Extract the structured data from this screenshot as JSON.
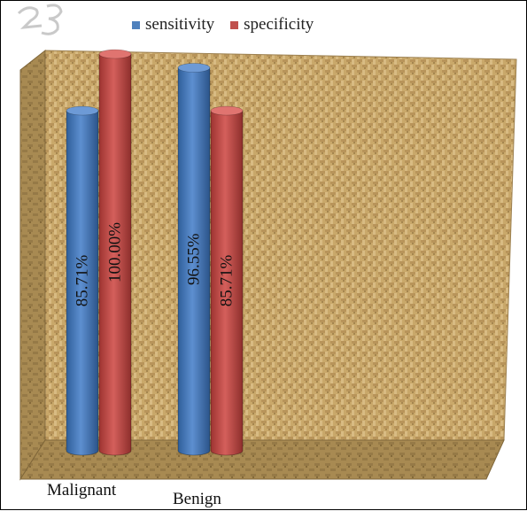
{
  "chart_data": {
    "type": "bar",
    "categories": [
      "Malignant",
      "Benign"
    ],
    "series": [
      {
        "name": "sensitivity",
        "values": [
          85.71,
          96.55
        ],
        "labels": [
          "85.71%",
          "96.55%"
        ],
        "color": "#4f81bd"
      },
      {
        "name": "specificity",
        "values": [
          100.0,
          85.71
        ],
        "labels": [
          "100.00%",
          "85.71%"
        ],
        "color": "#c0504d"
      }
    ],
    "ylim": [
      0,
      100
    ],
    "grid": false,
    "legend_position": "top",
    "style": "3d-cylinder",
    "background": "textured-burlap"
  },
  "legend": {
    "items": [
      {
        "label": "sensitivity",
        "color": "#4f81bd"
      },
      {
        "label": "specificity",
        "color": "#c0504d"
      }
    ]
  }
}
